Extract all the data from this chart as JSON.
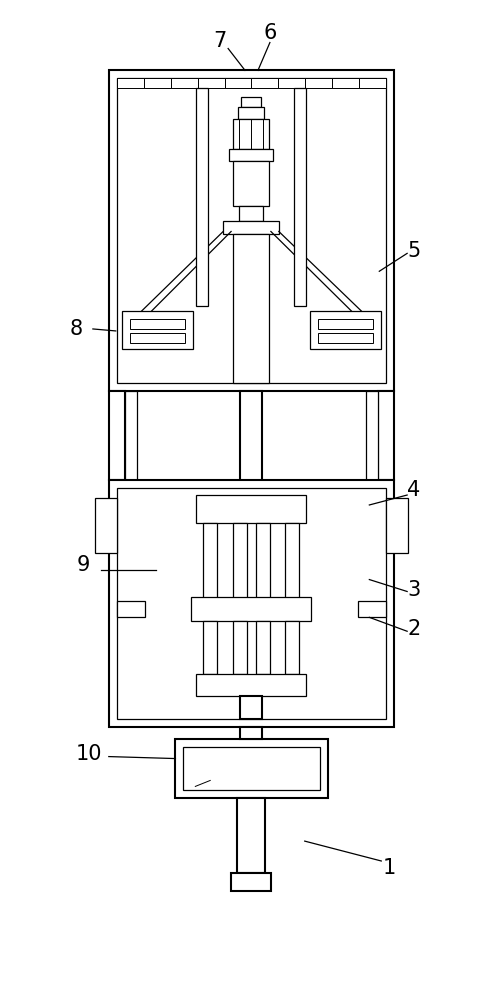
{
  "bg_color": "#ffffff",
  "lc": "#000000",
  "lw": 1.5,
  "tlw": 0.9,
  "fig_width": 5.03,
  "fig_height": 10.0
}
